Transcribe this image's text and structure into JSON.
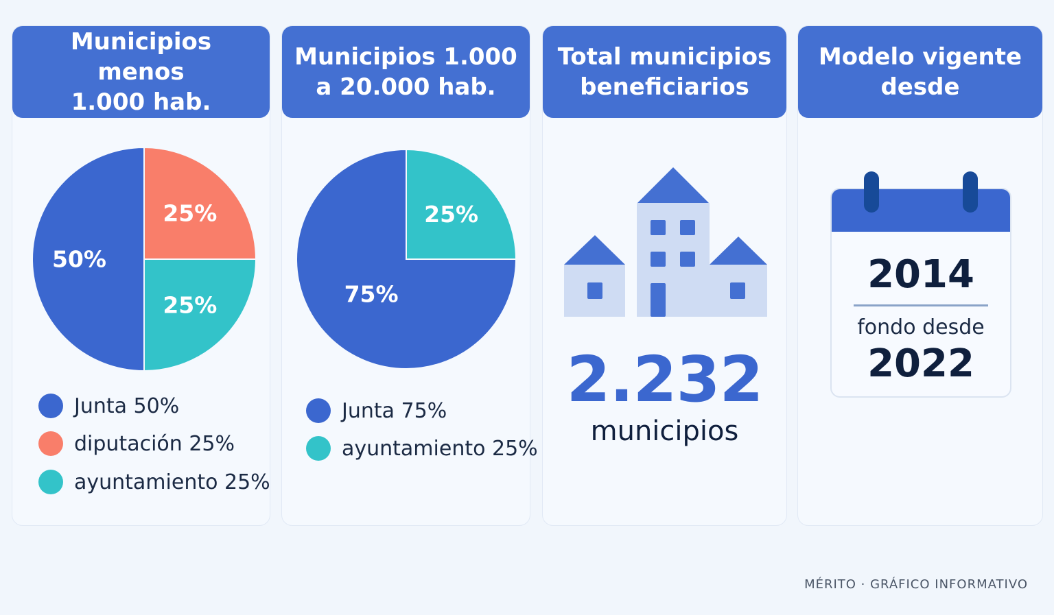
{
  "colors": {
    "header": "#4470d2",
    "junta": "#3b67cf",
    "diputacion": "#f97e6a",
    "ayuntamiento": "#33c3c9",
    "icon_blue": "#4470d2",
    "icon_light": "#cfdcf3"
  },
  "cards": [
    {
      "title": "Municipios menos\n1.000 hab.",
      "chart_data": {
        "type": "pie",
        "slices": [
          {
            "label": "Junta",
            "value": 50,
            "display": "50%",
            "color": "#3b67cf"
          },
          {
            "label": "diputación",
            "value": 25,
            "display": "25%",
            "color": "#f97e6a"
          },
          {
            "label": "ayuntamiento",
            "value": 25,
            "display": "25%",
            "color": "#33c3c9"
          }
        ]
      },
      "legend": [
        "Junta 50%",
        "diputación 25%",
        "ayuntamiento 25%"
      ]
    },
    {
      "title": "Municipios 1.000\na 20.000 hab.",
      "chart_data": {
        "type": "pie",
        "slices": [
          {
            "label": "ayuntamiento",
            "value": 25,
            "display": "25%",
            "color": "#33c3c9"
          },
          {
            "label": "Junta",
            "value": 75,
            "display": "75%",
            "color": "#3b67cf"
          }
        ]
      },
      "legend": [
        "Junta 75%",
        "ayuntamiento 25%"
      ]
    },
    {
      "title": "Total municipios\nbeneficiarios",
      "icon": "buildings-icon",
      "value": "2.232",
      "unit": "municipios"
    },
    {
      "title": "Modelo vigente\ndesde",
      "icon": "calendar-icon",
      "year": "2014",
      "subtitle": "fondo desde",
      "year2": "2022"
    }
  ],
  "footer": "MÉRITO · GRÁFICO INFORMATIVO"
}
